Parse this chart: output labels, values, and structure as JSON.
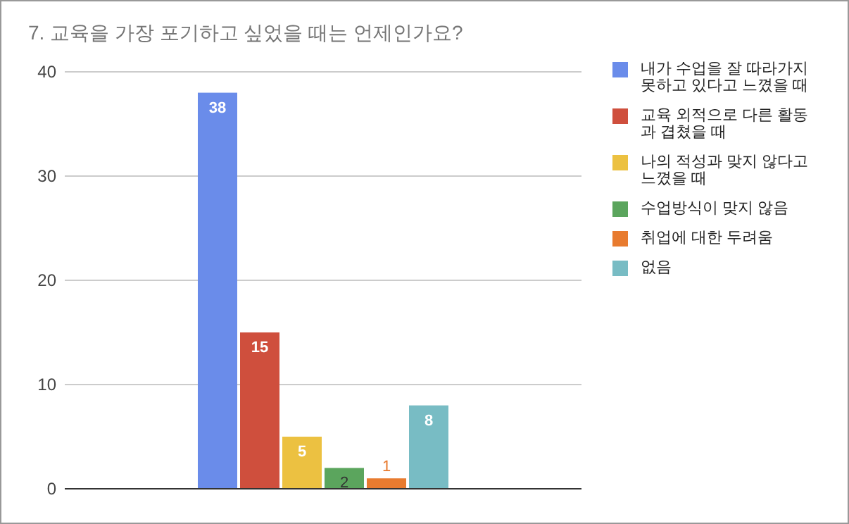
{
  "chart_data": {
    "type": "bar",
    "title": "7. 교육을 가장 포기하고 싶었을 때는 언제인가요?",
    "categories": [
      null
    ],
    "series": [
      {
        "name": "내가 수업을 잘 따라가지 못하고 있다고 느꼈을 때",
        "color": "#6a8cea",
        "values": [
          38
        ]
      },
      {
        "name": "교육 외적으로 다른 활동과 겹쳤을 때",
        "color": "#cf4f3d",
        "values": [
          15
        ]
      },
      {
        "name": "나의 적성과 맞지 않다고 느꼈을 때",
        "color": "#ecc141",
        "values": [
          5
        ]
      },
      {
        "name": "수업방식이 맞지 않음",
        "color": "#5ba55d",
        "values": [
          2
        ]
      },
      {
        "name": "취업에 대한 두려움",
        "color": "#e87b2f",
        "values": [
          1
        ]
      },
      {
        "name": "없음",
        "color": "#78bcc4",
        "values": [
          8
        ]
      }
    ],
    "ylim": [
      0,
      40
    ],
    "yticks": [
      0,
      10,
      20,
      30,
      40
    ],
    "grid": "y",
    "legend": "right",
    "data_labels": true
  }
}
